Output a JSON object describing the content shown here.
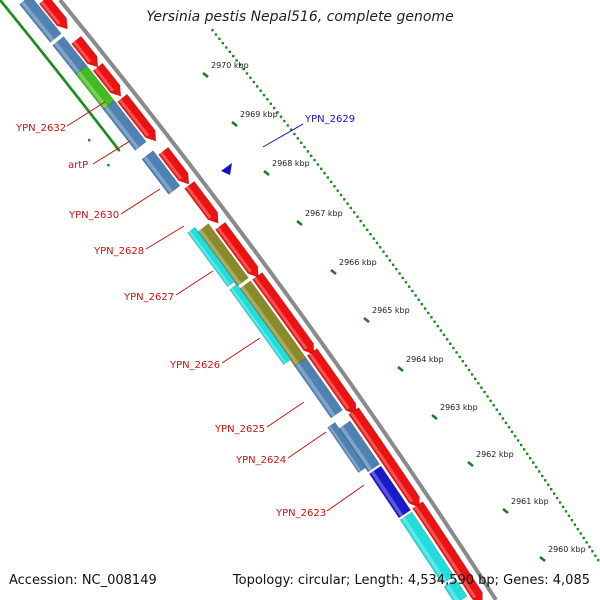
{
  "title": "Yersinia pestis Nepal516, complete genome",
  "footer": {
    "accession": "Accession: NC_008149",
    "summary": "Topology: circular; Length: 4,534,590 bp; Genes: 4,085"
  },
  "colors": {
    "forward_feature": "#ee1111",
    "reverse_steelblue": "#4f81b2",
    "reverse_green": "#44bb22",
    "reverse_olive": "#8a8a2a",
    "reverse_cyan": "#22dddd",
    "reverse_blue": "#1a1acc",
    "label_red": "#cc1111",
    "label_blue": "#1111cc",
    "backbone": "#8a8a8a",
    "ruler_dots": "#1b8a1b"
  },
  "ruler": [
    {
      "label": "2970 kbp"
    },
    {
      "label": "2969 kbp"
    },
    {
      "label": "2968 kbp"
    },
    {
      "label": "2967 kbp"
    },
    {
      "label": "2966 kbp"
    },
    {
      "label": "2965 kbp"
    },
    {
      "label": "2964 kbp"
    },
    {
      "label": "2963 kbp"
    },
    {
      "label": "2962 kbp"
    },
    {
      "label": "2961 kbp"
    },
    {
      "label": "2960 kbp"
    }
  ],
  "gene_labels": [
    {
      "text": "YPN_2632",
      "color": "red"
    },
    {
      "text": "artP",
      "color": "red"
    },
    {
      "text": "YPN_2630",
      "color": "red"
    },
    {
      "text": "YPN_2628",
      "color": "red"
    },
    {
      "text": "YPN_2627",
      "color": "red"
    },
    {
      "text": "YPN_2626",
      "color": "red"
    },
    {
      "text": "YPN_2625",
      "color": "red"
    },
    {
      "text": "YPN_2624",
      "color": "red"
    },
    {
      "text": "YPN_2623",
      "color": "red"
    },
    {
      "text": "YPN_2629",
      "color": "blue"
    }
  ]
}
